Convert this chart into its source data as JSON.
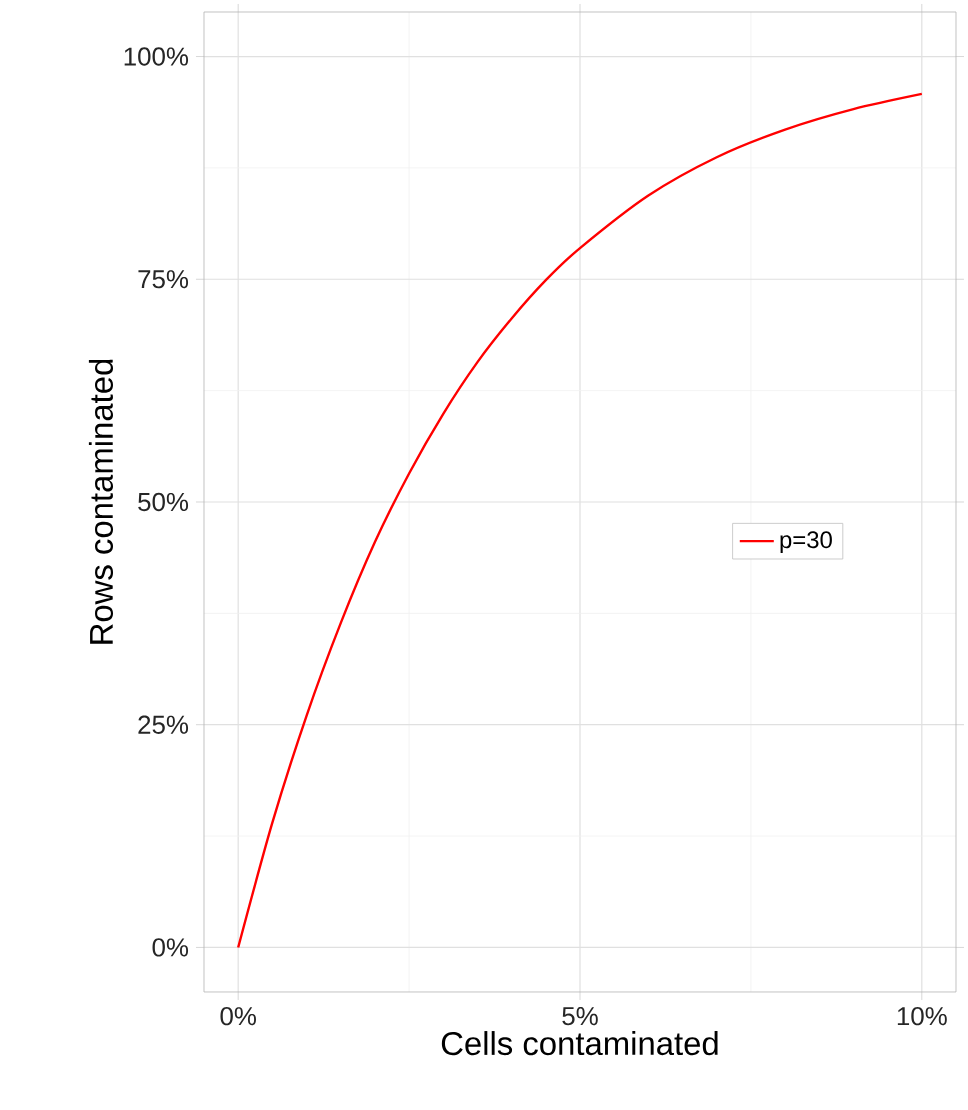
{
  "chart_data": {
    "type": "line",
    "xlabel": "Cells contaminated",
    "ylabel": "Rows contaminated",
    "x": [
      0,
      0.5,
      1,
      1.5,
      2,
      2.5,
      3,
      3.5,
      4,
      4.5,
      5,
      6,
      7,
      8,
      9,
      10
    ],
    "series": [
      {
        "name": "p=30",
        "color": "#ff0000",
        "values": [
          0,
          14,
          26,
          36.4,
          45.5,
          53.2,
          59.9,
          65.7,
          70.6,
          74.9,
          78.5,
          84.4,
          88.7,
          91.8,
          94.1,
          95.8
        ]
      }
    ],
    "xlim": [
      -0.5,
      10.5
    ],
    "ylim": [
      -5,
      105
    ],
    "xticks": [
      {
        "value": 0,
        "label": "0%"
      },
      {
        "value": 5,
        "label": "5%"
      },
      {
        "value": 10,
        "label": "10%"
      }
    ],
    "yticks": [
      {
        "value": 0,
        "label": "0%"
      },
      {
        "value": 25,
        "label": "25%"
      },
      {
        "value": 50,
        "label": "50%"
      },
      {
        "value": 75,
        "label": "75%"
      },
      {
        "value": 100,
        "label": "100%"
      }
    ],
    "grid": true,
    "legend": "right",
    "marker": "none",
    "line_style": "solid"
  }
}
